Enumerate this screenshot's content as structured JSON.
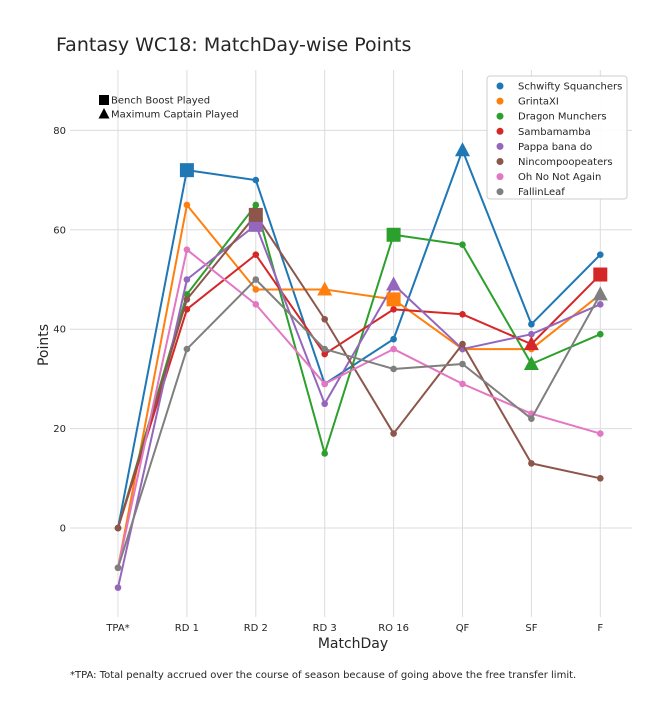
{
  "chart_data": {
    "type": "line",
    "title": "Fantasy WC18: MatchDay-wise Points",
    "xlabel": "MatchDay",
    "ylabel": "Points",
    "categories": [
      "TPA*",
      "RD 1",
      "RD 2",
      "RD 3",
      "RO 16",
      "QF",
      "SF",
      "F"
    ],
    "ylim": [
      -18,
      92
    ],
    "yticks": [
      0,
      20,
      40,
      60,
      80
    ],
    "grid": true,
    "legend_position": "top-right",
    "series": [
      {
        "name": "Schwifty Squanchers",
        "color": "#1f77b4",
        "values": [
          0,
          72,
          70,
          29,
          38,
          76,
          41,
          55
        ],
        "bench_boost_index": 1,
        "max_captain_index": 5
      },
      {
        "name": "GrintaXI",
        "color": "#ff7f0e",
        "values": [
          -8,
          65,
          48,
          48,
          46,
          36,
          36,
          47
        ],
        "bench_boost_index": 4,
        "max_captain_index": 3
      },
      {
        "name": "Dragon Munchers",
        "color": "#2ca02c",
        "values": [
          0,
          47,
          65,
          15,
          59,
          57,
          33,
          39
        ],
        "bench_boost_index": 4,
        "max_captain_index": 6
      },
      {
        "name": "Sambamamba",
        "color": "#d62728",
        "values": [
          0,
          44,
          55,
          35,
          44,
          43,
          37,
          51
        ],
        "bench_boost_index": 7,
        "max_captain_index": 6
      },
      {
        "name": "Pappa bana do",
        "color": "#9467bd",
        "values": [
          -12,
          50,
          61,
          25,
          49,
          36,
          39,
          45
        ],
        "bench_boost_index": 2,
        "max_captain_index": 4
      },
      {
        "name": "Nincompoopeaters",
        "color": "#8c564b",
        "values": [
          0,
          46,
          63,
          42,
          19,
          37,
          13,
          10
        ],
        "bench_boost_index": 2,
        "max_captain_index": null
      },
      {
        "name": "Oh No Not Again",
        "color": "#e377c2",
        "values": [
          -8,
          56,
          45,
          29,
          36,
          29,
          23,
          19
        ],
        "bench_boost_index": null,
        "max_captain_index": null
      },
      {
        "name": "FallinLeaf",
        "color": "#7f7f7f",
        "values": [
          -8,
          36,
          50,
          36,
          32,
          33,
          22,
          47
        ],
        "bench_boost_index": null,
        "max_captain_index": 7
      }
    ],
    "marker_legend": [
      {
        "shape": "square",
        "label": "Bench Boost Played"
      },
      {
        "shape": "triangle",
        "label": "Maximum Captain Played"
      }
    ],
    "footnote": "*TPA: Total penalty accrued over the course of season because of going above the free transfer limit."
  }
}
